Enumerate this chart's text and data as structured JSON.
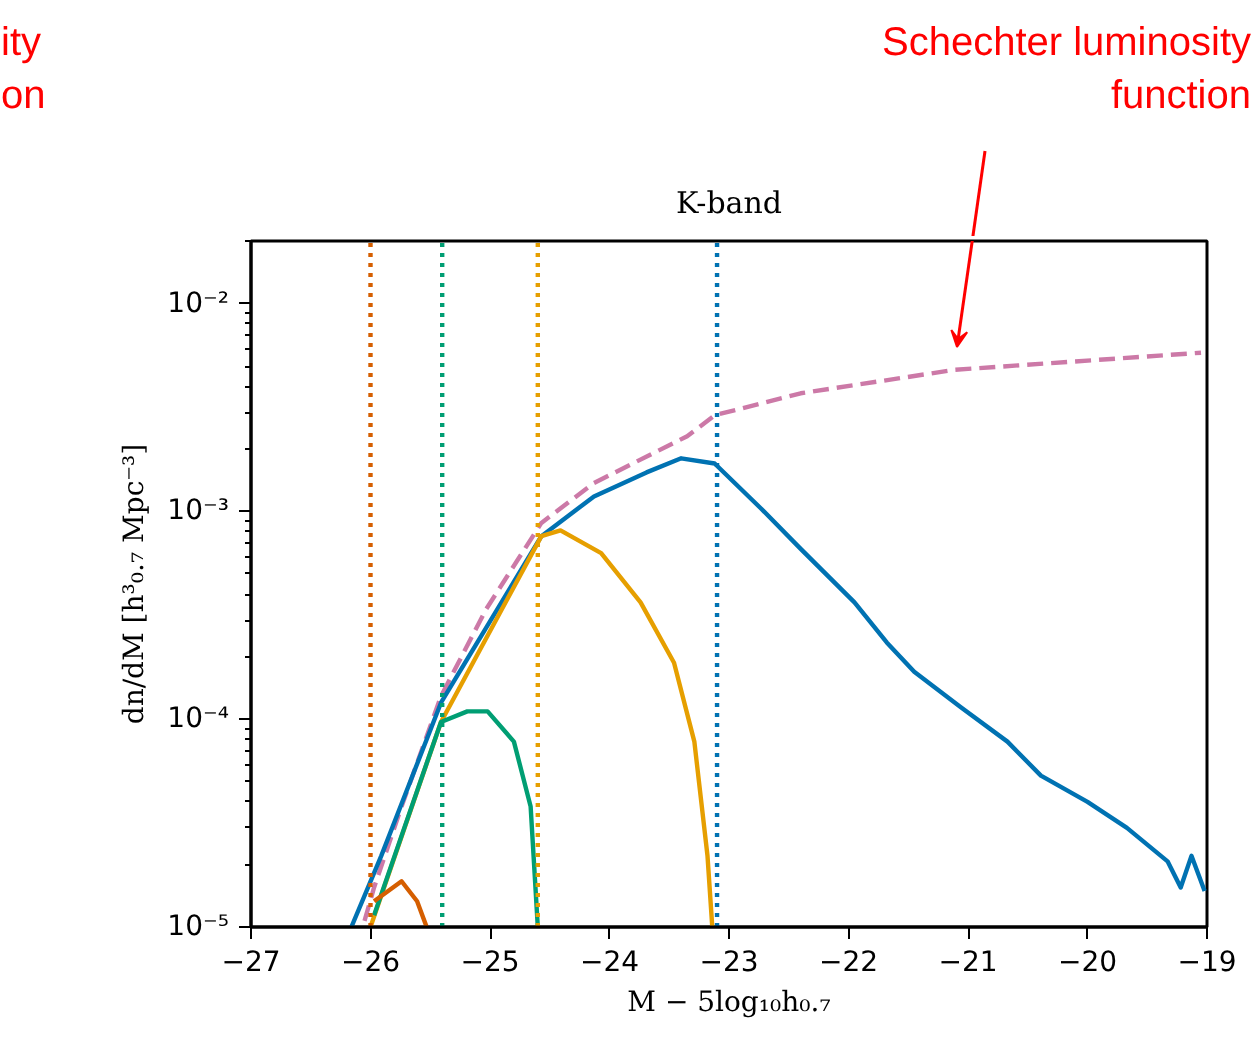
{
  "chart_data": {
    "type": "line",
    "title": "K-band",
    "xlabel": "M − 5log₁₀h₀.₇",
    "ylabel": "dn/dM [h³₀.₇ Mpc⁻³]",
    "xlim": [
      -27,
      -19
    ],
    "xticks": [
      {
        "value": -27,
        "label": "−27"
      },
      {
        "value": -26,
        "label": "−26"
      },
      {
        "value": -25,
        "label": "−25"
      },
      {
        "value": -24,
        "label": "−24"
      },
      {
        "value": -23,
        "label": "−23"
      },
      {
        "value": -22,
        "label": "−22"
      },
      {
        "value": -21,
        "label": "−21"
      },
      {
        "value": -20,
        "label": "−20"
      },
      {
        "value": -19,
        "label": "−19"
      }
    ],
    "ylim": [
      1e-05,
      0.02
    ],
    "yticks": [
      {
        "value": 1e-05,
        "label": "10⁻⁵"
      },
      {
        "value": 0.0001,
        "label": "10⁻⁴"
      },
      {
        "value": 0.001,
        "label": "10⁻³"
      },
      {
        "value": 0.01,
        "label": "10⁻²"
      }
    ],
    "log": "y",
    "grid": false,
    "series": [
      {
        "color": "#cc79a7",
        "line_style": "dashed",
        "x": [
          -26.05,
          -25.97,
          -25.74,
          -25.41,
          -25.03,
          -24.57,
          -24.13,
          -23.35,
          -23.12,
          -22.4,
          -21.11,
          -19.05
        ],
        "values": [
          1.07e-05,
          1.55e-05,
          3.8e-05,
          0.000129,
          0.00034,
          0.00088,
          0.00137,
          0.0023,
          0.0029,
          0.0037,
          0.0048,
          0.0058
        ]
      },
      {
        "color": "#0072b2",
        "line_style": "solid",
        "x": [
          -26.16,
          -25.91,
          -25.41,
          -24.57,
          -24.13,
          -23.69,
          -23.4,
          -23.12,
          -22.73,
          -22.4,
          -21.95,
          -21.68,
          -21.45,
          -21.06,
          -20.67,
          -20.39,
          -20.0,
          -19.67,
          -19.33,
          -19.22,
          -19.13,
          -19.02
        ],
        "values": [
          1e-05,
          2.2e-05,
          0.00012,
          0.00076,
          0.00118,
          0.00154,
          0.0018,
          0.0017,
          0.00103,
          0.00066,
          0.000365,
          0.000234,
          0.000169,
          0.000114,
          7.8e-05,
          5.35e-05,
          4e-05,
          3e-05,
          2.07e-05,
          1.55e-05,
          2.2e-05,
          1.49e-05
        ]
      },
      {
        "color": "#e69f00",
        "line_style": "solid",
        "x": [
          -26.0,
          -25.41,
          -24.57,
          -24.41,
          -24.07,
          -23.74,
          -23.46,
          -23.29,
          -23.18,
          -23.14
        ],
        "values": [
          1e-05,
          9.7e-05,
          0.00076,
          0.00081,
          0.00063,
          0.000365,
          0.000187,
          7.8e-05,
          2.2e-05,
          1e-05
        ]
      },
      {
        "color": "#009e73",
        "line_style": "solid",
        "x": [
          -25.97,
          -25.41,
          -25.19,
          -25.02,
          -24.8,
          -24.66,
          -24.6
        ],
        "values": [
          1.14e-05,
          9.7e-05,
          0.000109,
          0.000109,
          7.8e-05,
          3.8e-05,
          1e-05
        ]
      },
      {
        "color": "#d55e00",
        "line_style": "solid",
        "x": [
          -25.97,
          -25.74,
          -25.61,
          -25.53
        ],
        "values": [
          1.33e-05,
          1.66e-05,
          1.33e-05,
          1e-05
        ]
      }
    ],
    "ref_lines": [
      {
        "axis": "x",
        "value": -26.0,
        "color": "#d55e00",
        "line_style": "dotted"
      },
      {
        "axis": "x",
        "value": -25.4,
        "color": "#009e73",
        "line_style": "dotted"
      },
      {
        "axis": "x",
        "value": -24.6,
        "color": "#e69f00",
        "line_style": "dotted"
      },
      {
        "axis": "x",
        "value": -23.1,
        "color": "#0072b2",
        "line_style": "dotted"
      }
    ],
    "annotations": [
      "Schechter luminosity\nfunction",
      "ity\non"
    ]
  }
}
